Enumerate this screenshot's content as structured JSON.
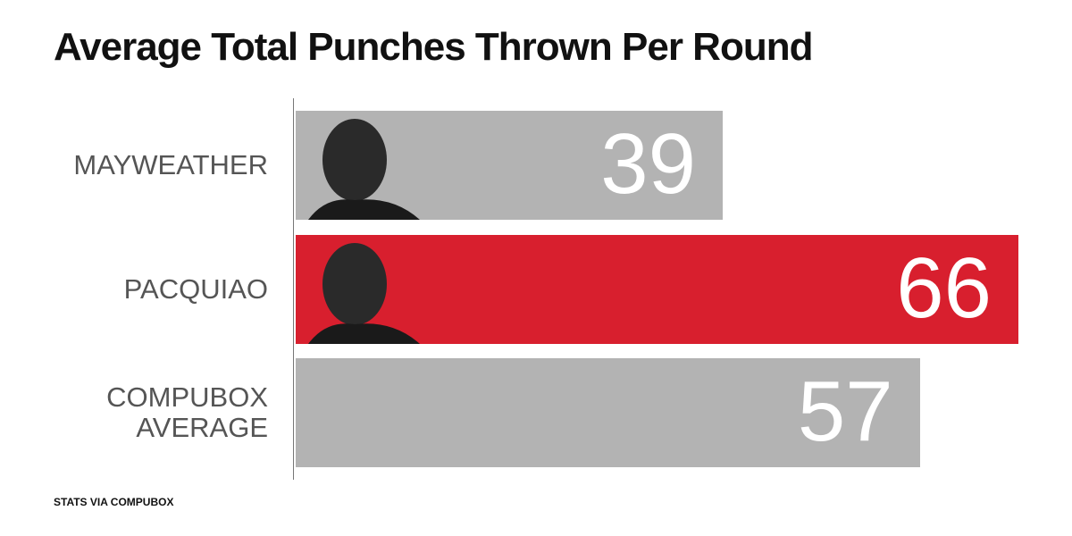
{
  "chart_data": {
    "type": "bar",
    "orientation": "horizontal",
    "title": "Average Total Punches Thrown Per Round",
    "categories": [
      "MAYWEATHER",
      "PACQUIAO",
      "COMPUBOX AVERAGE"
    ],
    "values": [
      39,
      66,
      57
    ],
    "colors": [
      "#b3b3b3",
      "#d81f2e",
      "#b3b3b3"
    ],
    "source": "STATS VIA COMPUBOX"
  }
}
